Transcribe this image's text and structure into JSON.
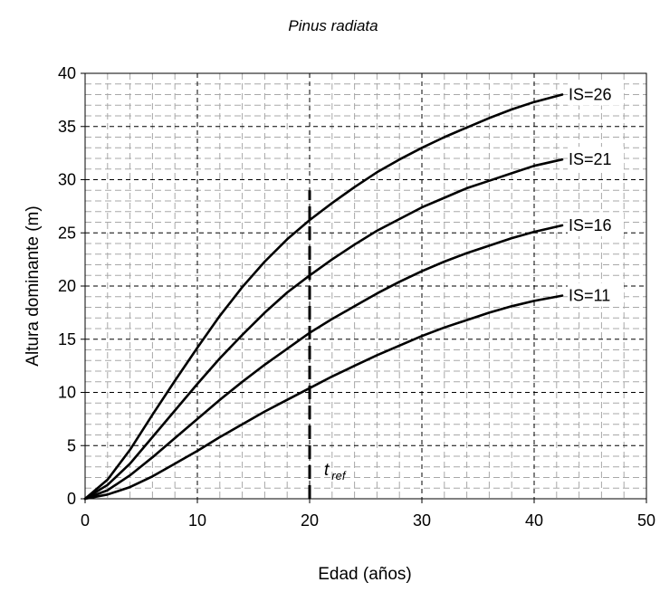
{
  "chart_data": {
    "type": "line",
    "title": "Pinus radiata",
    "xlabel": "Edad (años)",
    "ylabel": "Altura dominante (m)",
    "xlim": [
      0,
      50
    ],
    "ylim": [
      0,
      40
    ],
    "xticks": [
      0,
      10,
      20,
      30,
      40,
      50
    ],
    "yticks": [
      0,
      5,
      10,
      15,
      20,
      25,
      30,
      35,
      40
    ],
    "grid": true,
    "x": [
      0,
      2,
      4,
      6,
      8,
      10,
      12,
      14,
      16,
      18,
      20,
      22,
      24,
      26,
      28,
      30,
      32,
      34,
      36,
      38,
      40,
      42.5
    ],
    "series": [
      {
        "name": "IS=26",
        "values": [
          0,
          1.8,
          4.6,
          7.9,
          11.1,
          14.2,
          17.2,
          19.9,
          22.3,
          24.4,
          26.2,
          27.8,
          29.3,
          30.7,
          31.9,
          33.0,
          34.0,
          34.9,
          35.8,
          36.6,
          37.3,
          38.0
        ]
      },
      {
        "name": "IS=21",
        "values": [
          0,
          1.3,
          3.3,
          5.8,
          8.3,
          10.8,
          13.2,
          15.4,
          17.5,
          19.4,
          21.0,
          22.5,
          23.9,
          25.2,
          26.3,
          27.4,
          28.3,
          29.2,
          29.9,
          30.6,
          31.3,
          31.9
        ]
      },
      {
        "name": "IS=16",
        "values": [
          0,
          0.8,
          2.2,
          3.9,
          5.7,
          7.5,
          9.3,
          11.0,
          12.6,
          14.1,
          15.6,
          16.9,
          18.1,
          19.3,
          20.4,
          21.4,
          22.3,
          23.1,
          23.8,
          24.5,
          25.1,
          25.7
        ]
      },
      {
        "name": "IS=11",
        "values": [
          0,
          0.4,
          1.1,
          2.1,
          3.3,
          4.5,
          5.8,
          7.0,
          8.2,
          9.3,
          10.4,
          11.5,
          12.5,
          13.5,
          14.4,
          15.3,
          16.1,
          16.8,
          17.5,
          18.1,
          18.6,
          19.1
        ]
      }
    ],
    "reference_line": {
      "x": 20,
      "y_top": 29,
      "label": "t",
      "label_sub": "ref"
    }
  }
}
